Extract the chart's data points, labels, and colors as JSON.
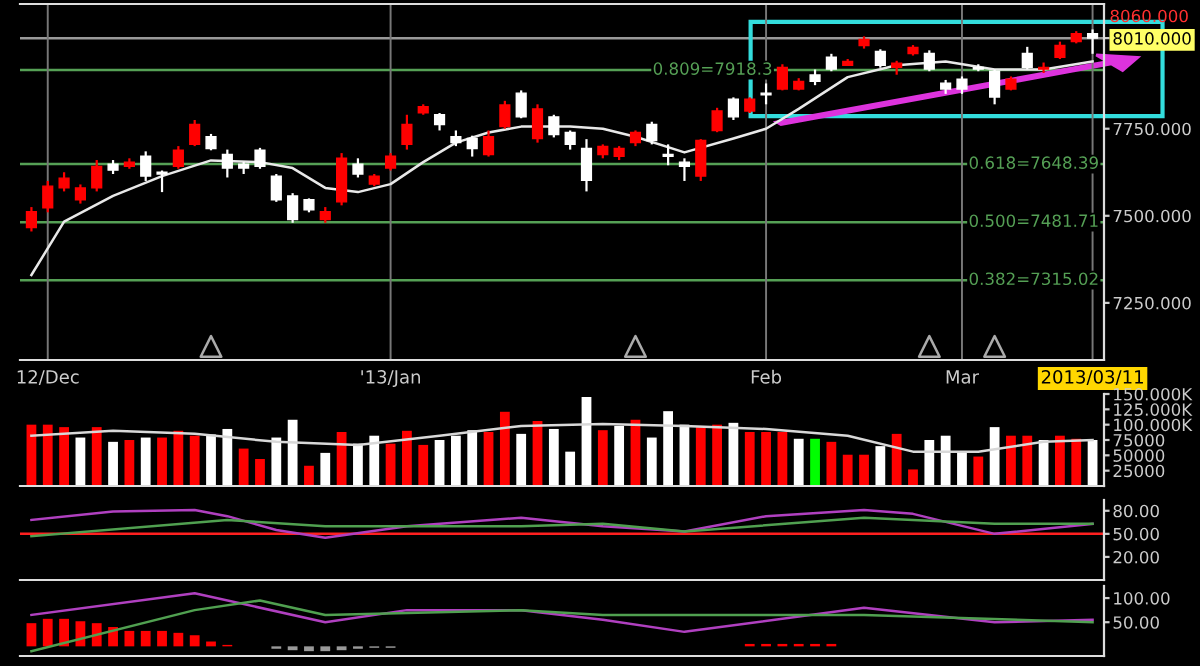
{
  "chart_data": [
    {
      "type": "candlestick",
      "categories": [
        null,
        "12/Dec",
        null,
        null,
        null,
        null,
        null,
        null,
        null,
        null,
        null,
        null,
        null,
        null,
        null,
        null,
        null,
        null,
        null,
        null,
        null,
        null,
        "'13/Jan",
        null,
        null,
        null,
        null,
        null,
        null,
        null,
        null,
        null,
        null,
        null,
        null,
        null,
        null,
        null,
        null,
        null,
        null,
        null,
        null,
        null,
        null,
        "Feb",
        null,
        null,
        null,
        null,
        null,
        null,
        null,
        null,
        null,
        null,
        null,
        "Mar",
        null,
        null,
        null,
        null,
        null,
        null,
        null,
        "2013/03/11"
      ],
      "ohlc": [
        [
          7466,
          7525,
          7455,
          7512
        ],
        [
          7523,
          7600,
          7510,
          7585
        ],
        [
          7580,
          7625,
          7570,
          7608
        ],
        [
          7546,
          7590,
          7535,
          7580
        ],
        [
          7580,
          7660,
          7570,
          7642
        ],
        [
          7648,
          7660,
          7620,
          7631
        ],
        [
          7642,
          7665,
          7635,
          7654
        ],
        [
          7671,
          7685,
          7600,
          7614
        ],
        [
          7625,
          7630,
          7568,
          7620
        ],
        [
          7642,
          7700,
          7635,
          7688
        ],
        [
          7705,
          7775,
          7700,
          7762
        ],
        [
          7727,
          7735,
          7688,
          7693
        ],
        [
          7676,
          7690,
          7610,
          7637
        ],
        [
          7648,
          7655,
          7620,
          7637
        ],
        [
          7688,
          7695,
          7635,
          7642
        ],
        [
          7614,
          7620,
          7540,
          7546
        ],
        [
          7557,
          7565,
          7480,
          7489
        ],
        [
          7546,
          7550,
          7510,
          7517
        ],
        [
          7489,
          7525,
          7480,
          7512
        ],
        [
          7540,
          7680,
          7530,
          7665
        ],
        [
          7648,
          7665,
          7610,
          7620
        ],
        [
          7591,
          7620,
          7585,
          7614
        ],
        [
          7637,
          7680,
          7630,
          7671
        ],
        [
          7705,
          7790,
          7690,
          7762
        ],
        [
          7796,
          7820,
          7790,
          7813
        ],
        [
          7790,
          7795,
          7745,
          7762
        ],
        [
          7727,
          7745,
          7700,
          7710
        ],
        [
          7722,
          7730,
          7670,
          7693
        ],
        [
          7676,
          7745,
          7670,
          7727
        ],
        [
          7756,
          7830,
          7750,
          7818
        ],
        [
          7852,
          7860,
          7780,
          7784
        ],
        [
          7722,
          7820,
          7710,
          7807
        ],
        [
          7784,
          7790,
          7725,
          7733
        ],
        [
          7739,
          7745,
          7690,
          7705
        ],
        [
          7693,
          7720,
          7570,
          7602
        ],
        [
          7676,
          7705,
          7665,
          7699
        ],
        [
          7671,
          7700,
          7660,
          7693
        ],
        [
          7710,
          7745,
          7700,
          7739
        ],
        [
          7762,
          7770,
          7705,
          7716
        ],
        [
          7676,
          7705,
          7645,
          7671
        ],
        [
          7654,
          7665,
          7600,
          7642
        ],
        [
          7614,
          7720,
          7600,
          7716
        ],
        [
          7745,
          7810,
          7740,
          7801
        ],
        [
          7835,
          7840,
          7775,
          7784
        ],
        [
          7801,
          7840,
          7795,
          7835
        ],
        [
          7852,
          7880,
          7820,
          7847
        ],
        [
          7864,
          7935,
          7860,
          7926
        ],
        [
          7864,
          7895,
          7860,
          7886
        ],
        [
          7904,
          7920,
          7875,
          7886
        ],
        [
          7955,
          7965,
          7915,
          7921
        ],
        [
          7932,
          7950,
          7930,
          7943
        ],
        [
          7989,
          8015,
          7980,
          8006
        ],
        [
          7972,
          7978,
          7925,
          7932
        ],
        [
          7926,
          7945,
          7905,
          7938
        ],
        [
          7966,
          7990,
          7960,
          7983
        ],
        [
          7966,
          7975,
          7915,
          7921
        ],
        [
          7881,
          7890,
          7850,
          7864
        ],
        [
          7892,
          7900,
          7850,
          7864
        ],
        [
          7926,
          7935,
          7915,
          7921
        ],
        [
          7915,
          7920,
          7820,
          7841
        ],
        [
          7864,
          7900,
          7860,
          7892
        ],
        [
          7966,
          7985,
          7920,
          7926
        ],
        [
          7921,
          7940,
          7910,
          7926
        ],
        [
          7955,
          8000,
          7950,
          7989
        ],
        [
          8000,
          8030,
          7995,
          8023
        ],
        [
          8023,
          8035,
          7965,
          8010
        ]
      ],
      "colors": [
        "#ff0000",
        "#ff0000",
        "#ff0000",
        "#ff0000",
        "#ff0000",
        "#ffffff",
        "#ff0000",
        "#ffffff",
        "#ffffff",
        "#ff0000",
        "#ff0000",
        "#ffffff",
        "#ffffff",
        "#ffffff",
        "#ffffff",
        "#ffffff",
        "#ffffff",
        "#ffffff",
        "#ff0000",
        "#ff0000",
        "#ffffff",
        "#ff0000",
        "#ff0000",
        "#ff0000",
        "#ff0000",
        "#ffffff",
        "#ffffff",
        "#ffffff",
        "#ff0000",
        "#ff0000",
        "#ffffff",
        "#ff0000",
        "#ffffff",
        "#ffffff",
        "#ffffff",
        "#ff0000",
        "#ff0000",
        "#ff0000",
        "#ffffff",
        "#ffffff",
        "#ffffff",
        "#ff0000",
        "#ff0000",
        "#ffffff",
        "#ff0000",
        "#ffffff",
        "#ff0000",
        "#ff0000",
        "#ffffff",
        "#ffffff",
        "#ff0000",
        "#ff0000",
        "#ffffff",
        "#ff0000",
        "#ff0000",
        "#ffffff",
        "#ffffff",
        "#ffffff",
        "#ffffff",
        "#ffffff",
        "#ff0000",
        "#ffffff",
        "#ff0000",
        "#ff0000",
        "#ff0000",
        "#ffffff"
      ],
      "series": [
        {
          "type": "line",
          "color": "#e8e8e8",
          "values": [
            7330,
            null,
            7483,
            null,
            null,
            7557,
            null,
            null,
            7614,
            null,
            null,
            7659,
            null,
            null,
            7654,
            null,
            7637,
            null,
            7580,
            null,
            7568,
            null,
            7591,
            null,
            7654,
            null,
            7710,
            null,
            7739,
            null,
            7756,
            null,
            null,
            7756,
            null,
            7750,
            null,
            7727,
            null,
            null,
            7682,
            null,
            null,
            7722,
            null,
            7750,
            null,
            7807,
            null,
            null,
            7898,
            null,
            null,
            7932,
            null,
            null,
            7943,
            null,
            null,
            7920,
            null,
            null,
            7920,
            null,
            null,
            7943
          ]
        },
        {
          "type": "scatter",
          "color": "#aaaaaa",
          "marker": "triangle",
          "values": [
            null,
            null,
            null,
            null,
            null,
            null,
            null,
            null,
            null,
            null,
            null,
            7125,
            null,
            null,
            null,
            null,
            null,
            null,
            null,
            null,
            null,
            null,
            null,
            null,
            null,
            null,
            null,
            null,
            null,
            null,
            null,
            null,
            null,
            null,
            null,
            null,
            null,
            7125,
            null,
            null,
            null,
            null,
            null,
            null,
            null,
            null,
            null,
            null,
            null,
            null,
            null,
            null,
            null,
            null,
            null,
            7125,
            null,
            null,
            null,
            7125,
            null,
            null,
            null,
            null,
            null,
            null
          ]
        }
      ],
      "ylim": [
        7086,
        8108
      ],
      "yticks": [
        {
          "value": 7250,
          "label": "7250.000"
        },
        {
          "value": 7500,
          "label": "7500.000"
        },
        {
          "value": 7750,
          "label": "7750.000"
        },
        {
          "value": 8010,
          "label": "8010.000"
        }
      ],
      "ref_lines": [
        {
          "axis": "y",
          "value": 8010,
          "color": "#999999"
        },
        {
          "axis": "y",
          "value": 7918.3,
          "label": "0.809=7918.3",
          "color": "#55a055"
        },
        {
          "axis": "y",
          "value": 7648.39,
          "label": "0.618=7648.39",
          "color": "#55a055"
        },
        {
          "axis": "y",
          "value": 7481.71,
          "label": "0.500=7481.71",
          "color": "#55a055"
        },
        {
          "axis": "y",
          "value": 7315.02,
          "label": "0.382=7315.02",
          "color": "#55a055"
        }
      ],
      "annotations": [
        "8060.000"
      ],
      "grid": "x"
    },
    {
      "type": "bar",
      "tick_labels": "y",
      "categories": [
        null,
        null,
        null,
        null,
        null,
        null,
        null,
        null,
        null,
        null,
        null,
        null,
        null,
        null,
        null,
        null,
        null,
        null,
        null,
        null,
        null,
        null,
        null,
        null,
        null,
        null,
        null,
        null,
        null,
        null,
        null,
        null,
        null,
        null,
        null,
        null,
        null,
        null,
        null,
        null,
        null,
        null,
        null,
        null,
        null,
        null,
        null,
        null,
        null,
        null,
        null,
        null,
        null,
        null,
        null,
        null,
        null,
        null,
        null,
        null,
        null,
        null,
        null,
        null,
        null,
        null
      ],
      "series": [
        {
          "type": "bar",
          "values": [
            100000,
            100000,
            96000,
            79000,
            96000,
            72000,
            75000,
            79000,
            79000,
            90000,
            82000,
            84000,
            93000,
            61000,
            44000,
            79000,
            108000,
            33000,
            54000,
            88000,
            69000,
            82000,
            69000,
            90000,
            67000,
            75000,
            82000,
            91000,
            88000,
            121000,
            85000,
            106000,
            93000,
            56000,
            145000,
            91000,
            98000,
            108000,
            79000,
            122000,
            100000,
            96000,
            100000,
            103000,
            88000,
            88000,
            88000,
            77000,
            77000,
            72000,
            51000,
            51000,
            65000,
            85000,
            27000,
            75000,
            82000,
            56000,
            48000,
            96000,
            82000,
            82000,
            75000,
            82000,
            77000,
            75000
          ],
          "colors": [
            "#ff0000",
            "#ff0000",
            "#ff0000",
            "#ffffff",
            "#ff0000",
            "#ffffff",
            "#ff0000",
            "#ffffff",
            "#ff0000",
            "#ff0000",
            "#ff0000",
            "#ffffff",
            "#ffffff",
            "#ff0000",
            "#ff0000",
            "#ffffff",
            "#ffffff",
            "#ff0000",
            "#ffffff",
            "#ff0000",
            "#ffffff",
            "#ffffff",
            "#ff0000",
            "#ff0000",
            "#ff0000",
            "#ffffff",
            "#ffffff",
            "#ffffff",
            "#ff0000",
            "#ff0000",
            "#ffffff",
            "#ff0000",
            "#ffffff",
            "#ffffff",
            "#ffffff",
            "#ff0000",
            "#ffffff",
            "#ff0000",
            "#ffffff",
            "#ffffff",
            "#ffffff",
            "#ff0000",
            "#ff0000",
            "#ffffff",
            "#ff0000",
            "#ff0000",
            "#ff0000",
            "#ffffff",
            "#00ff00",
            "#ff0000",
            "#ff0000",
            "#ff0000",
            "#ffffff",
            "#ff0000",
            "#ff0000",
            "#ffffff",
            "#ffffff",
            "#ffffff",
            "#ff0000",
            "#ffffff",
            "#ff0000",
            "#ff0000",
            "#ffffff",
            "#ff0000",
            "#ff0000",
            "#ffffff"
          ]
        },
        {
          "type": "line",
          "color": "#d8d8d8",
          "values": [
            82000,
            null,
            null,
            null,
            null,
            90000,
            null,
            null,
            null,
            null,
            85000,
            null,
            null,
            null,
            null,
            72000,
            null,
            null,
            null,
            null,
            67000,
            null,
            null,
            null,
            null,
            82000,
            null,
            null,
            null,
            null,
            98000,
            null,
            null,
            null,
            null,
            101000,
            null,
            null,
            null,
            null,
            98000,
            null,
            null,
            null,
            null,
            93000,
            null,
            null,
            null,
            null,
            82000,
            null,
            null,
            null,
            56000,
            null,
            null,
            null,
            56000,
            null,
            null,
            null,
            72000,
            null,
            null,
            75000
          ]
        }
      ],
      "ylim": [
        0,
        150000
      ],
      "yticks": [
        25000,
        50000,
        75000,
        {
          "value": 100000,
          "label": "100.000K"
        },
        {
          "value": 125000,
          "label": "125.000K"
        },
        {
          "value": 150000,
          "label": "150.000K"
        }
      ]
    },
    {
      "type": "line",
      "tick_labels": "y",
      "categories": [
        null,
        null,
        null,
        null,
        null,
        null,
        null,
        null,
        null,
        null,
        null,
        null,
        null,
        null,
        null,
        null,
        null,
        null,
        null,
        null,
        null,
        null,
        null,
        null,
        null,
        null,
        null,
        null,
        null,
        null,
        null,
        null,
        null,
        null,
        null,
        null,
        null,
        null,
        null,
        null,
        null,
        null,
        null,
        null,
        null,
        null,
        null,
        null,
        null,
        null,
        null,
        null,
        null,
        null,
        null,
        null,
        null,
        null,
        null,
        null,
        null,
        null,
        null,
        null,
        null,
        null
      ],
      "series": [
        {
          "color": "#b040c0",
          "values": [
            68,
            null,
            null,
            null,
            null,
            79,
            null,
            null,
            null,
            null,
            81,
            null,
            73,
            null,
            null,
            55,
            null,
            null,
            45,
            null,
            null,
            null,
            null,
            60,
            null,
            null,
            null,
            null,
            null,
            null,
            71,
            null,
            null,
            null,
            null,
            60,
            null,
            null,
            null,
            null,
            53,
            null,
            null,
            null,
            null,
            73,
            null,
            null,
            null,
            null,
            null,
            81,
            null,
            null,
            76,
            null,
            null,
            null,
            null,
            50,
            null,
            null,
            null,
            null,
            null,
            63
          ]
        },
        {
          "color": "#50a050",
          "values": [
            47,
            null,
            null,
            null,
            null,
            null,
            null,
            null,
            null,
            null,
            null,
            null,
            68,
            null,
            null,
            null,
            null,
            null,
            60,
            null,
            null,
            null,
            null,
            null,
            null,
            null,
            null,
            null,
            null,
            null,
            60,
            null,
            null,
            null,
            null,
            63,
            null,
            null,
            null,
            null,
            53,
            null,
            null,
            null,
            null,
            null,
            null,
            null,
            null,
            null,
            null,
            71,
            null,
            null,
            null,
            null,
            null,
            null,
            null,
            63,
            null,
            null,
            null,
            null,
            null,
            63
          ]
        }
      ],
      "ylim": [
        -10,
        94
      ],
      "yticks": [
        {
          "value": 20,
          "label": "20.00"
        },
        {
          "value": 50,
          "label": "50.00"
        },
        {
          "value": 80,
          "label": "80.00"
        }
      ],
      "ref_lines": [
        {
          "axis": "y",
          "value": 50,
          "color": "#ff2020"
        }
      ]
    },
    {
      "type": "line",
      "tick_labels": "y",
      "categories": [
        null,
        null,
        null,
        null,
        null,
        null,
        null,
        null,
        null,
        null,
        null,
        null,
        null,
        null,
        null,
        null,
        null,
        null,
        null,
        null,
        null,
        null,
        null,
        null,
        null,
        null,
        null,
        null,
        null,
        null,
        null,
        null,
        null,
        null,
        null,
        null,
        null,
        null,
        null,
        null,
        null,
        null,
        null,
        null,
        null,
        null,
        null,
        null,
        null,
        null,
        null,
        null,
        null,
        null,
        null,
        null,
        null,
        null,
        null,
        null,
        null,
        null,
        null,
        null,
        null,
        null
      ],
      "series": [
        {
          "type": "bar",
          "values": [
            48,
            57,
            57,
            52,
            48,
            40,
            32,
            32,
            32,
            28,
            23,
            10,
            3,
            null,
            null,
            -5,
            -8,
            -10,
            -10,
            -8,
            -5,
            -3,
            -3,
            null,
            null,
            null,
            null,
            null,
            null,
            null,
            null,
            null,
            null,
            null,
            null,
            null,
            null,
            null,
            null,
            null,
            null,
            null,
            null,
            null,
            5,
            5,
            5,
            5,
            5,
            5,
            null,
            null,
            null,
            null,
            null,
            null,
            null,
            null,
            null,
            null,
            null,
            null,
            null,
            null,
            null,
            null
          ],
          "colors": [
            "#ff0000",
            "#ff0000",
            "#ff0000",
            "#ff0000",
            "#ff0000",
            "#ff0000",
            "#ff0000",
            "#ff0000",
            "#ff0000",
            "#ff0000",
            "#ff0000",
            "#ff0000",
            "#ff0000",
            "#ff0000",
            "#ff0000",
            "#999999",
            "#999999",
            "#999999",
            "#999999",
            "#999999",
            "#999999",
            "#999999",
            "#999999",
            "#ff0000",
            "#ff0000",
            "#ff0000",
            "#ff0000",
            "#ff0000",
            "#ff0000",
            "#ff0000",
            "#ff0000",
            "#ff0000",
            "#ff0000",
            "#ff0000",
            "#ff0000",
            "#ff0000",
            "#ff0000",
            "#ff0000",
            "#ff0000",
            "#ff0000",
            "#ff0000",
            "#ff0000",
            "#ff0000",
            "#ff0000",
            "#ff0000",
            "#ff0000",
            "#ff0000",
            "#ff0000",
            "#ff0000",
            "#ff0000",
            "#ff0000",
            "#ff0000",
            "#ff0000",
            "#ff0000",
            "#ff0000",
            "#ff0000",
            "#ff0000",
            "#ff0000",
            "#ff0000",
            "#ff0000",
            "#ff0000",
            "#ff0000",
            "#ff0000",
            "#ff0000",
            "#ff0000",
            "#ff0000"
          ]
        },
        {
          "color": "#b040c0",
          "values": [
            65,
            null,
            null,
            null,
            null,
            null,
            null,
            null,
            null,
            null,
            110,
            null,
            null,
            null,
            null,
            null,
            null,
            null,
            50,
            null,
            null,
            null,
            null,
            75,
            null,
            null,
            null,
            null,
            null,
            null,
            75,
            null,
            null,
            null,
            null,
            55,
            null,
            null,
            null,
            null,
            30,
            null,
            null,
            null,
            null,
            null,
            null,
            null,
            null,
            null,
            null,
            80,
            null,
            null,
            null,
            null,
            null,
            null,
            null,
            50,
            null,
            null,
            null,
            null,
            null,
            55
          ]
        },
        {
          "color": "#50a050",
          "values": [
            -10,
            null,
            null,
            null,
            null,
            null,
            null,
            null,
            null,
            null,
            75,
            null,
            null,
            null,
            95,
            null,
            null,
            null,
            65,
            null,
            null,
            null,
            null,
            null,
            null,
            null,
            null,
            null,
            null,
            null,
            75,
            null,
            null,
            null,
            null,
            65,
            null,
            null,
            null,
            null,
            null,
            null,
            null,
            null,
            null,
            null,
            null,
            null,
            null,
            null,
            null,
            65,
            null,
            null,
            null,
            null,
            null,
            null,
            null,
            null,
            null,
            null,
            null,
            null,
            null,
            50
          ]
        }
      ],
      "ylim": [
        -20,
        125
      ],
      "yticks": [
        {
          "value": 50,
          "label": "50.00"
        },
        {
          "value": 100,
          "label": "100.00"
        }
      ]
    }
  ]
}
